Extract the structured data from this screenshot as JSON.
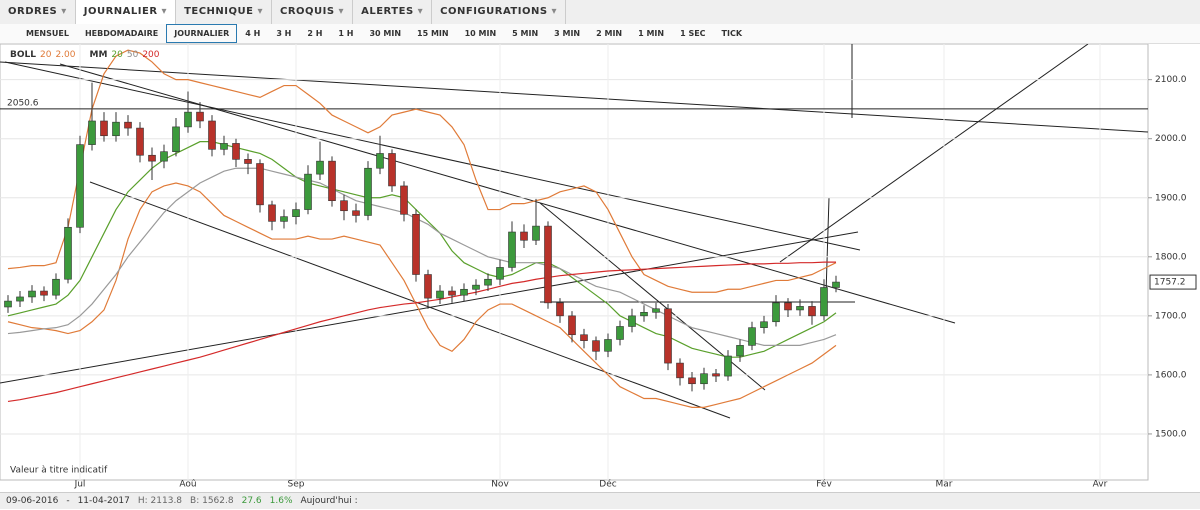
{
  "menu": [
    "ORDRES",
    "JOURNALIER",
    "TECHNIQUE",
    "CROQUIS",
    "ALERTES",
    "CONFIGURATIONS"
  ],
  "timeframes": [
    "MENSUEL",
    "HEBDOMADAIRE",
    "JOURNALIER",
    "4 H",
    "3 H",
    "2 H",
    "1 H",
    "30 MIN",
    "15 MIN",
    "10 MIN",
    "5 MIN",
    "3 MIN",
    "2 MIN",
    "1 MIN",
    "1 SEC",
    "TICK"
  ],
  "status_bar": {
    "from": "09-06-2016",
    "separator": "-",
    "to": "11-04-2017",
    "high": "H: 2113.8",
    "low": "B: 1562.8",
    "change": "27.6",
    "change_pct": "1.6%",
    "today": "Aujourd'hui :"
  },
  "chart_data": {
    "type": "candlestick",
    "note": "Valeur à titre indicatif",
    "legend": [
      {
        "text": "BOLL",
        "params": [
          {
            "text": "20",
            "color": "#e07b39"
          },
          {
            "text": "2.00",
            "color": "#e07b39"
          }
        ]
      },
      {
        "text": "MM",
        "params": [
          {
            "text": "20",
            "color": "#5aa02c"
          },
          {
            "text": "50",
            "color": "#8c8c8c"
          },
          {
            "text": "200",
            "color": "#d42a2a"
          }
        ]
      }
    ],
    "categories": [
      null,
      null,
      null,
      null,
      null,
      null,
      "Jul",
      null,
      null,
      null,
      null,
      null,
      null,
      null,
      null,
      "Aoû",
      null,
      null,
      null,
      null,
      null,
      null,
      null,
      null,
      "Sep",
      null,
      null,
      null,
      null,
      null,
      null,
      null,
      null,
      null,
      null,
      null,
      null,
      null,
      null,
      null,
      null,
      "Nov",
      null,
      null,
      null,
      null,
      null,
      null,
      null,
      null,
      "Déc",
      null,
      null,
      null,
      null,
      null,
      null,
      null,
      null,
      null,
      null,
      null,
      null,
      null,
      null,
      null,
      null,
      null,
      "Fév",
      null,
      null,
      null,
      null,
      null,
      null,
      null,
      null,
      null,
      "Mar",
      null,
      null,
      null,
      null,
      null,
      null,
      null,
      null,
      null,
      null,
      null,
      null,
      "Avr"
    ],
    "open": [
      1715,
      1725,
      1732,
      1742,
      1735,
      1762,
      1850,
      1990,
      2030,
      2005,
      2028,
      2018,
      1972,
      1962,
      1978,
      2020,
      2045,
      2030,
      1982,
      1992,
      1965,
      1958,
      1888,
      1860,
      1868,
      1880,
      1940,
      1962,
      1895,
      1878,
      1870,
      1950,
      1975,
      1920,
      1872,
      1770,
      1730,
      1742,
      1735,
      1745,
      1752,
      1762,
      1782,
      1842,
      1828,
      1852,
      1722,
      1700,
      1668,
      1658,
      1640,
      1660,
      1682,
      1700,
      1706,
      1712,
      1620,
      1595,
      1585,
      1602,
      1598,
      1632,
      1650,
      1680,
      1690,
      1722,
      1710,
      1716,
      1700,
      1748,
      null,
      null,
      null,
      null,
      null,
      null,
      null,
      null,
      null,
      null,
      null,
      null,
      null,
      null,
      null,
      null,
      null,
      null,
      null,
      null,
      null,
      null
    ],
    "high": [
      1735,
      1742,
      1752,
      1750,
      1772,
      1865,
      2005,
      2095,
      2045,
      2045,
      2040,
      2028,
      1985,
      1990,
      2035,
      2080,
      2062,
      2040,
      2005,
      2000,
      1975,
      1965,
      1895,
      1880,
      1892,
      1955,
      1995,
      1970,
      1905,
      1890,
      1962,
      2005,
      1982,
      1928,
      1880,
      1778,
      1752,
      1750,
      1755,
      1762,
      1772,
      1795,
      1860,
      1855,
      1898,
      1860,
      1730,
      1708,
      1678,
      1665,
      1670,
      1692,
      1712,
      1718,
      1722,
      1720,
      1628,
      1605,
      1612,
      1610,
      1642,
      1660,
      1690,
      1700,
      1735,
      1730,
      1728,
      1725,
      1762,
      1768,
      null,
      null,
      null,
      null,
      null,
      null,
      null,
      null,
      null,
      null,
      null,
      null,
      null,
      null,
      null,
      null,
      null,
      null,
      null,
      null,
      null,
      null
    ],
    "low": [
      1705,
      1715,
      1722,
      1725,
      1728,
      1755,
      1840,
      1980,
      1995,
      1995,
      2005,
      1960,
      1930,
      1950,
      1970,
      2010,
      2018,
      1970,
      1972,
      1952,
      1940,
      1875,
      1845,
      1848,
      1855,
      1872,
      1930,
      1885,
      1862,
      1858,
      1862,
      1940,
      1910,
      1860,
      1758,
      1712,
      1720,
      1722,
      1725,
      1735,
      1742,
      1752,
      1775,
      1815,
      1820,
      1712,
      1688,
      1655,
      1645,
      1625,
      1630,
      1650,
      1672,
      1690,
      1695,
      1608,
      1582,
      1572,
      1575,
      1588,
      1590,
      1622,
      1642,
      1670,
      1682,
      1698,
      1700,
      1685,
      1692,
      1740,
      null,
      null,
      null,
      null,
      null,
      null,
      null,
      null,
      null,
      null,
      null,
      null,
      null,
      null,
      null,
      null,
      null,
      null,
      null,
      null,
      null,
      null
    ],
    "close": [
      1725,
      1732,
      1742,
      1735,
      1762,
      1850,
      1990,
      2030,
      2005,
      2028,
      2018,
      1972,
      1962,
      1978,
      2020,
      2045,
      2030,
      1982,
      1992,
      1965,
      1958,
      1888,
      1860,
      1868,
      1880,
      1940,
      1962,
      1895,
      1878,
      1870,
      1950,
      1975,
      1920,
      1872,
      1770,
      1730,
      1742,
      1735,
      1745,
      1752,
      1762,
      1782,
      1842,
      1828,
      1852,
      1722,
      1700,
      1668,
      1658,
      1640,
      1660,
      1682,
      1700,
      1706,
      1712,
      1620,
      1595,
      1585,
      1602,
      1598,
      1632,
      1650,
      1680,
      1690,
      1722,
      1710,
      1716,
      1700,
      1748,
      1757.2,
      null,
      null,
      null,
      null,
      null,
      null,
      null,
      null,
      null,
      null,
      null,
      null,
      null,
      null,
      null,
      null,
      null,
      null,
      null,
      null,
      null,
      null
    ],
    "up_color": "#3c9a3c",
    "down_color": "#b8322a",
    "lines": [
      {
        "color": "#e07b39",
        "values": [
          1780,
          1782,
          1785,
          1785,
          1790,
          1850,
          1950,
          2050,
          2110,
          2140,
          2150,
          2145,
          2130,
          2110,
          2100,
          2100,
          2095,
          2090,
          2085,
          2080,
          2075,
          2070,
          2080,
          2090,
          2090,
          2075,
          2060,
          2040,
          2030,
          2020,
          2010,
          2020,
          2040,
          2045,
          2050,
          2045,
          2040,
          2020,
          1990,
          1930,
          1880,
          1880,
          1890,
          1890,
          1895,
          1900,
          1910,
          1915,
          1920,
          1910,
          1880,
          1840,
          1800,
          1770,
          1760,
          1750,
          1745,
          1740,
          1740,
          1740,
          1745,
          1745,
          1750,
          1755,
          1760,
          1760,
          1765,
          1770,
          1780,
          1790,
          null,
          null,
          null,
          null,
          null,
          null,
          null,
          null,
          null,
          null,
          null,
          null,
          null,
          null,
          null,
          null,
          null,
          null,
          null,
          null,
          null,
          null
        ]
      },
      {
        "color": "#e07b39",
        "values": [
          1690,
          1685,
          1680,
          1678,
          1675,
          1670,
          1675,
          1690,
          1710,
          1760,
          1830,
          1880,
          1910,
          1920,
          1925,
          1920,
          1910,
          1890,
          1870,
          1860,
          1850,
          1840,
          1830,
          1830,
          1830,
          1835,
          1830,
          1830,
          1835,
          1830,
          1825,
          1820,
          1790,
          1760,
          1720,
          1680,
          1650,
          1640,
          1660,
          1690,
          1710,
          1720,
          1720,
          1710,
          1700,
          1690,
          1680,
          1660,
          1640,
          1620,
          1600,
          1580,
          1570,
          1560,
          1560,
          1555,
          1550,
          1545,
          1545,
          1550,
          1555,
          1560,
          1570,
          1580,
          1590,
          1600,
          1610,
          1620,
          1635,
          1650,
          null,
          null,
          null,
          null,
          null,
          null,
          null,
          null,
          null,
          null,
          null,
          null,
          null,
          null,
          null,
          null,
          null,
          null,
          null,
          null,
          null,
          null
        ]
      },
      {
        "color": "#5aa02c",
        "values": [
          1700,
          1705,
          1710,
          1715,
          1720,
          1735,
          1760,
          1800,
          1840,
          1880,
          1910,
          1930,
          1950,
          1965,
          1975,
          1985,
          1995,
          1995,
          1990,
          1985,
          1980,
          1975,
          1965,
          1950,
          1935,
          1925,
          1920,
          1915,
          1910,
          1905,
          1900,
          1900,
          1905,
          1900,
          1880,
          1860,
          1840,
          1810,
          1790,
          1780,
          1770,
          1765,
          1770,
          1780,
          1790,
          1790,
          1780,
          1765,
          1750,
          1735,
          1720,
          1700,
          1690,
          1680,
          1670,
          1665,
          1655,
          1645,
          1640,
          1635,
          1630,
          1630,
          1635,
          1640,
          1650,
          1660,
          1670,
          1680,
          1690,
          1705,
          null,
          null,
          null,
          null,
          null,
          null,
          null,
          null,
          null,
          null,
          null,
          null,
          null,
          null,
          null,
          null,
          null,
          null,
          null,
          null,
          null,
          null
        ]
      },
      {
        "color": "#9a9a9a",
        "values": [
          1670,
          1672,
          1675,
          1678,
          1680,
          1685,
          1700,
          1720,
          1745,
          1770,
          1800,
          1825,
          1850,
          1875,
          1895,
          1910,
          1925,
          1935,
          1945,
          1950,
          1950,
          1950,
          1945,
          1940,
          1935,
          1930,
          1925,
          1915,
          1905,
          1895,
          1890,
          1885,
          1880,
          1875,
          1865,
          1855,
          1840,
          1830,
          1820,
          1810,
          1800,
          1795,
          1790,
          1790,
          1790,
          1785,
          1780,
          1770,
          1760,
          1750,
          1745,
          1740,
          1730,
          1720,
          1710,
          1700,
          1690,
          1680,
          1675,
          1670,
          1665,
          1660,
          1655,
          1650,
          1650,
          1650,
          1650,
          1655,
          1660,
          1668,
          null,
          null,
          null,
          null,
          null,
          null,
          null,
          null,
          null,
          null,
          null,
          null,
          null,
          null,
          null,
          null,
          null,
          null,
          null,
          null,
          null,
          null
        ]
      },
      {
        "color": "#d42a2a",
        "values": [
          1555,
          1558,
          1562,
          1566,
          1570,
          1575,
          1580,
          1585,
          1590,
          1595,
          1600,
          1605,
          1610,
          1615,
          1620,
          1625,
          1630,
          1636,
          1642,
          1648,
          1654,
          1660,
          1666,
          1672,
          1678,
          1684,
          1690,
          1695,
          1700,
          1705,
          1710,
          1714,
          1717,
          1720,
          1722,
          1725,
          1728,
          1732,
          1736,
          1740,
          1745,
          1750,
          1755,
          1758,
          1762,
          1765,
          1768,
          1770,
          1772,
          1774,
          1776,
          1777,
          1778,
          1779,
          1780,
          1781,
          1782,
          1783,
          1784,
          1785,
          1786,
          1787,
          1788,
          1788,
          1789,
          1789,
          1790,
          1790,
          1791,
          1791,
          null,
          null,
          null,
          null,
          null,
          null,
          null,
          null,
          null,
          null,
          null,
          null,
          null,
          null,
          null,
          null,
          null,
          null,
          null,
          null,
          null,
          null
        ]
      }
    ],
    "hline": 2050.6,
    "ylim": [
      1422,
      2157
    ],
    "yticks": [
      {
        "value": 1500,
        "label": "1500.0"
      },
      {
        "value": 1600,
        "label": "1600.0"
      },
      {
        "value": 1700,
        "label": "1700.0"
      },
      {
        "value": 1800,
        "label": "1800.0"
      },
      {
        "value": 1900,
        "label": "1900.0"
      },
      {
        "value": 2000,
        "label": "2000.0"
      },
      {
        "value": 2100,
        "label": "2100.0"
      }
    ],
    "grid": true
  }
}
